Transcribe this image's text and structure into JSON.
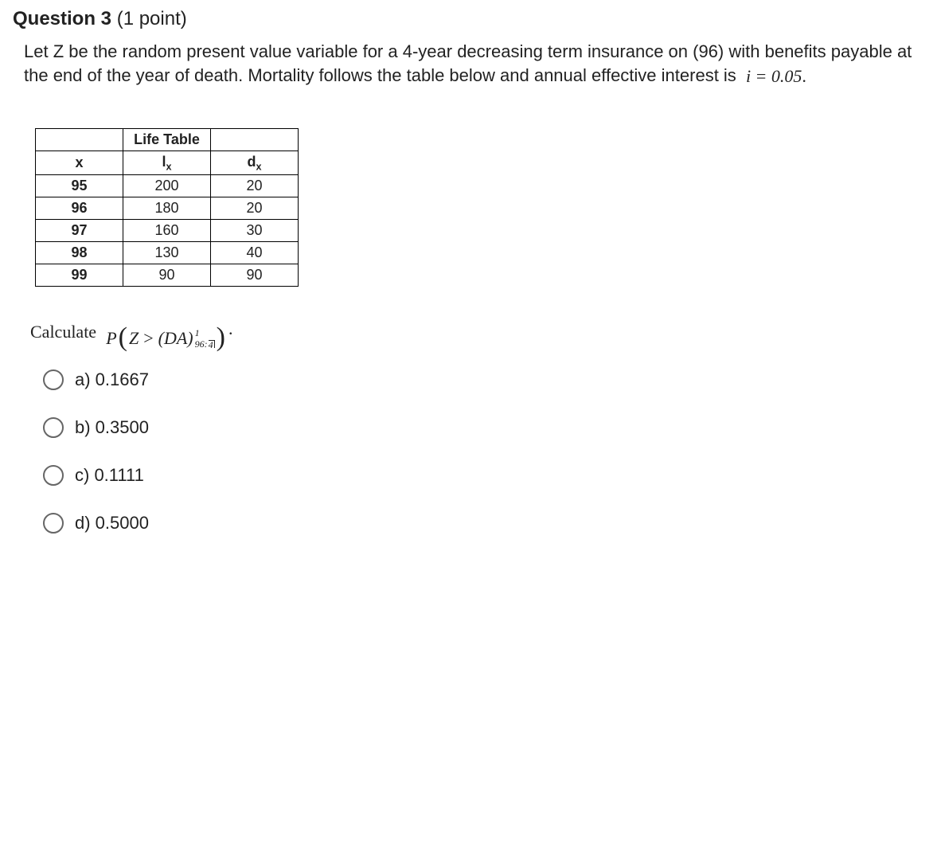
{
  "question": {
    "number_label": "Question 3",
    "points_label": "(1 point)",
    "prompt": "Let Z be the random present value variable for a 4-year decreasing term insurance on (96) with benefits payable at the end of the year of death.  Mortality follows the table below and annual effective interest is",
    "interest_formula": "i = 0.05"
  },
  "life_table": {
    "title": "Life Table",
    "columns": {
      "x": "x",
      "lx": "l",
      "lx_sub": "x",
      "dx": "d",
      "dx_sub": "x"
    },
    "rows": [
      {
        "x": "95",
        "lx": "200",
        "dx": "20"
      },
      {
        "x": "96",
        "lx": "180",
        "dx": "20"
      },
      {
        "x": "97",
        "lx": "160",
        "dx": "30"
      },
      {
        "x": "98",
        "lx": "130",
        "dx": "40"
      },
      {
        "x": "99",
        "lx": "90",
        "dx": "90"
      }
    ]
  },
  "calculate": {
    "label": "Calculate",
    "P": "P",
    "Z": "Z",
    "gt": ">",
    "DA": "(DA)",
    "sup": "1",
    "sub_age": "96:",
    "sub_term": "4"
  },
  "options": [
    {
      "label": "a) 0.1667"
    },
    {
      "label": "b) 0.3500"
    },
    {
      "label": "c) 0.1111"
    },
    {
      "label": "d) 0.5000"
    }
  ],
  "colors": {
    "text": "#222222",
    "border": "#000000",
    "radio_border": "#666666",
    "background": "#ffffff"
  }
}
